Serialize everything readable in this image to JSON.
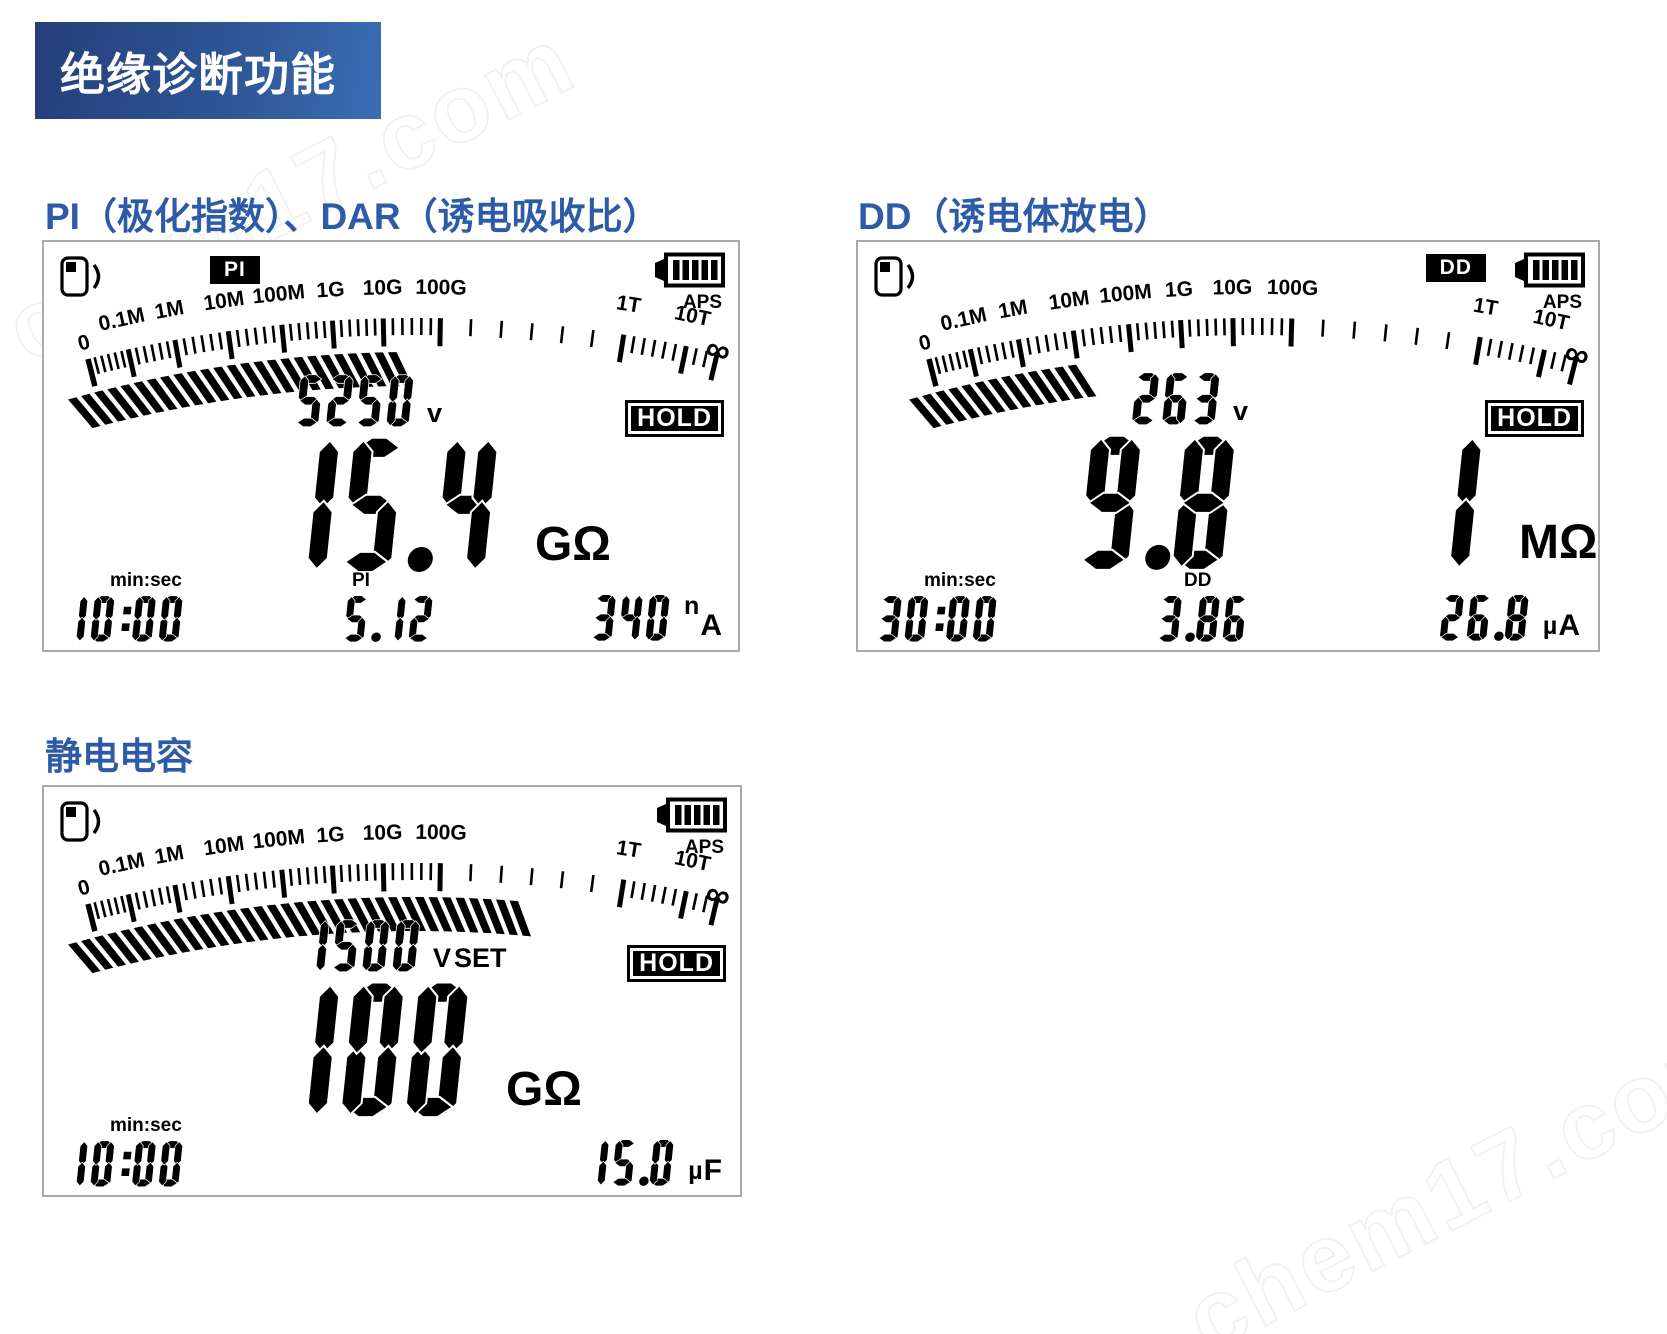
{
  "banner": {
    "title": "绝缘诊断功能"
  },
  "watermark": {
    "text": "chem17.com"
  },
  "panels": [
    {
      "title": "PI（极化指数）、DAR（诱电吸收比）",
      "mode_badge": "PI",
      "aps": "APS",
      "hold": "HOLD",
      "scale": {
        "labels": [
          "0",
          "0.1M",
          "1M",
          "10M",
          "100M",
          "1G",
          "10G",
          "100G",
          "1T",
          "10T",
          "∞"
        ],
        "filled_to": "10G",
        "filled_to_index": 6.15
      },
      "voltage": {
        "value": "5250",
        "unit": "v"
      },
      "main": {
        "value": "15.4",
        "unit": "GΩ"
      },
      "timer": {
        "label": "min:sec",
        "value": "10:00"
      },
      "sub": {
        "label": "PI",
        "value": "5.12"
      },
      "aux": {
        "value": "340",
        "unit_prefix": "n",
        "unit": "A"
      }
    },
    {
      "title": "DD（诱电体放电）",
      "mode_badge": "DD",
      "aps": "APS",
      "hold": "HOLD",
      "scale": {
        "labels": [
          "0",
          "0.1M",
          "1M",
          "10M",
          "100M",
          "1G",
          "10G",
          "100G",
          "1T",
          "10T",
          "∞"
        ],
        "filled_to": "10M",
        "filled_to_index": 2.85
      },
      "voltage": {
        "value": "263",
        "unit": "v"
      },
      "main": {
        "value": "9.8    1",
        "unit": "MΩ"
      },
      "timer": {
        "label": "min:sec",
        "value": "30:00"
      },
      "sub": {
        "label": "DD",
        "value": "3.86"
      },
      "aux": {
        "value": "26.8",
        "unit_prefix": "µ",
        "unit": "A"
      }
    },
    {
      "title": "静电电容",
      "aps": "APS",
      "hold": "HOLD",
      "scale": {
        "labels": [
          "0",
          "0.1M",
          "1M",
          "10M",
          "100M",
          "1G",
          "10G",
          "100G",
          "1T",
          "10T",
          "∞"
        ],
        "filled_to": "100G",
        "filled_to_index": 7.4
      },
      "voltage": {
        "value": "1500",
        "unit": "V",
        "unit2": "SET"
      },
      "main": {
        "value": "100",
        "unit": "GΩ"
      },
      "timer": {
        "label": "min:sec",
        "value": "10:00"
      },
      "aux": {
        "value": "15.0",
        "unit_prefix": "µ",
        "unit": "F"
      }
    }
  ]
}
